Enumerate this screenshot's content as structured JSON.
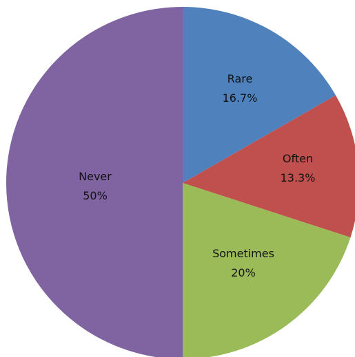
{
  "chart_data": {
    "type": "pie",
    "categories": [
      "Rare",
      "Often",
      "Sometimes",
      "Never"
    ],
    "values": [
      16.7,
      13.3,
      20,
      50
    ],
    "value_labels": [
      "16.7%",
      "13.3%",
      "20%",
      "50%"
    ],
    "colors": [
      "#4F81BD",
      "#C0504D",
      "#9BBB59",
      "#8064A2"
    ],
    "start": "12 o'clock",
    "direction": "clockwise",
    "legend": "none"
  }
}
